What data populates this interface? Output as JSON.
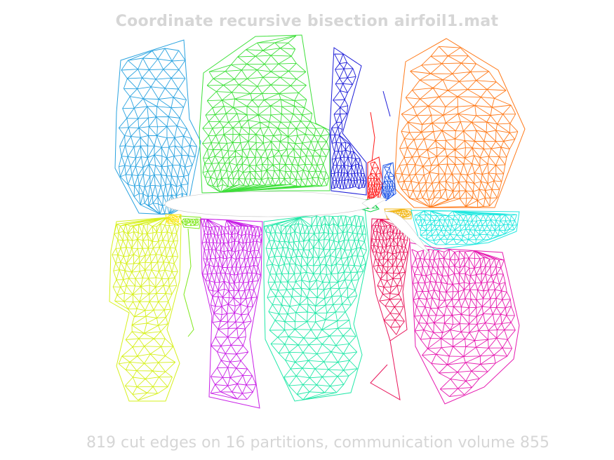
{
  "title": "Coordinate recursive bisection airfoil1.mat",
  "caption": "819 cut edges on 16 partitions, communication volume 855",
  "partitions": [
    {
      "id": 1,
      "color": "#2aa3e0"
    },
    {
      "id": 2,
      "color": "#3ee03a"
    },
    {
      "id": 3,
      "color": "#1c1cd8"
    },
    {
      "id": 4,
      "color": "#ff7a1a"
    },
    {
      "id": 5,
      "color": "#ff1818"
    },
    {
      "id": 6,
      "color": "#1a52e6"
    },
    {
      "id": 7,
      "color": "#f2b81a"
    },
    {
      "id": 8,
      "color": "#22e8e0"
    },
    {
      "id": 9,
      "color": "#d6f01c"
    },
    {
      "id": 10,
      "color": "#7ee81a"
    },
    {
      "id": 11,
      "color": "#c81ee6"
    },
    {
      "id": 12,
      "color": "#22e8a8"
    },
    {
      "id": 13,
      "color": "#e8145a"
    },
    {
      "id": 14,
      "color": "#e61ab0"
    },
    {
      "id": 15,
      "color": "#14d24a"
    },
    {
      "id": 16,
      "color": "#ffe61a"
    }
  ]
}
